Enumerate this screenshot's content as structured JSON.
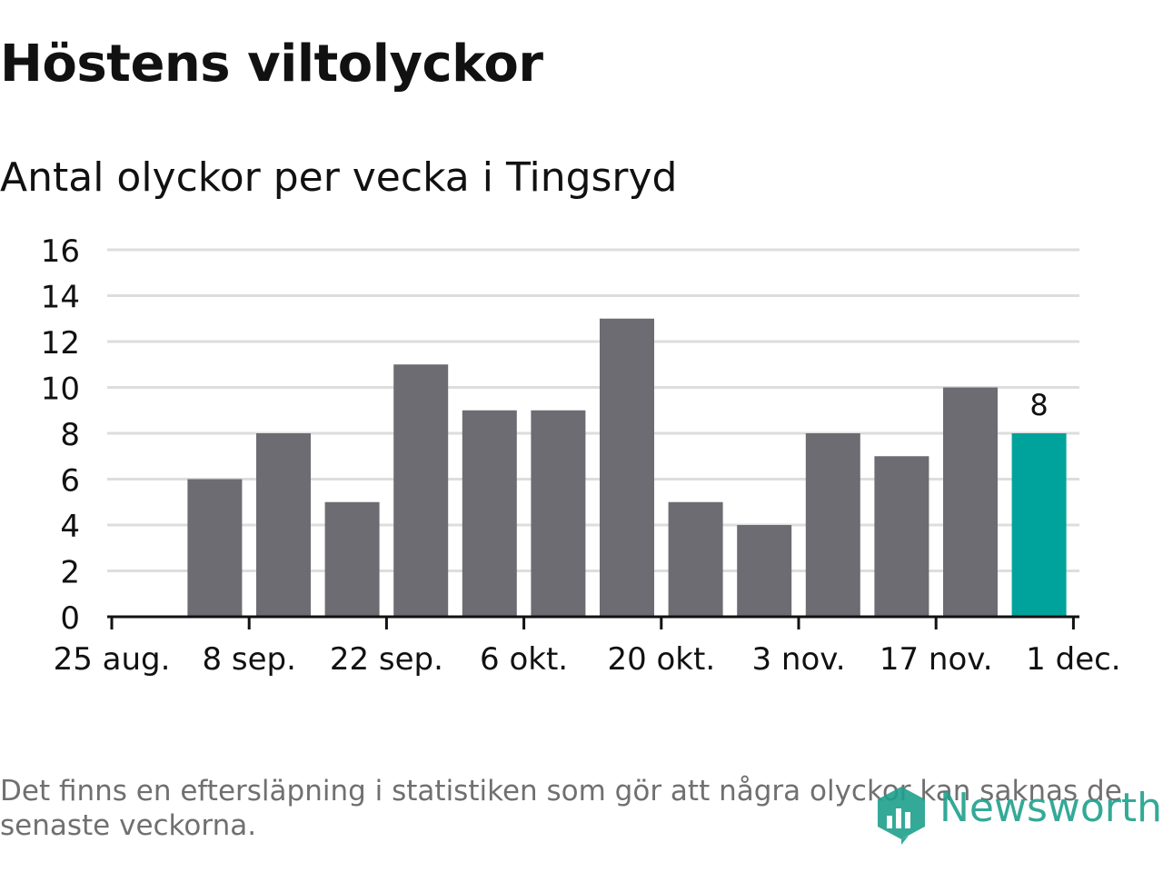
{
  "title": "Höstens viltolyckor",
  "subtitle": "Antal olyckor per vecka i Tingsryd",
  "footnote": "Det finns en eftersläpning i statistiken som gör att några olyckor kan saknas de senaste veckorna.",
  "brand": {
    "name": "Newsworthy",
    "icon": "newsworthy-logo-icon",
    "color": "#1fa08c"
  },
  "colors": {
    "bar": "#6d6c72",
    "highlight": "#00a39b",
    "grid": "#dddddd",
    "axis": "#111111"
  },
  "chart_data": {
    "type": "bar",
    "x": [
      "2025-08-25",
      "2025-09-01",
      "2025-09-08",
      "2025-09-15",
      "2025-09-22",
      "2025-09-29",
      "2025-10-06",
      "2025-10-13",
      "2025-10-20",
      "2025-10-27",
      "2025-11-03",
      "2025-11-10",
      "2025-11-17",
      "2025-11-24"
    ],
    "values": [
      null,
      6,
      8,
      5,
      11,
      9,
      9,
      13,
      5,
      4,
      8,
      7,
      10,
      8
    ],
    "highlight_index": 13,
    "highlight_label": "8",
    "ylim": [
      0,
      16
    ],
    "yticks": [
      "0",
      "2",
      "4",
      "6",
      "8",
      "10",
      "12",
      "14",
      "16"
    ],
    "xtick_labels": [
      "25 aug.",
      "8 sep.",
      "22 sep.",
      "6 okt.",
      "20 okt.",
      "3 nov.",
      "17 nov.",
      "1 dec."
    ],
    "grid": true,
    "legend": "none"
  }
}
